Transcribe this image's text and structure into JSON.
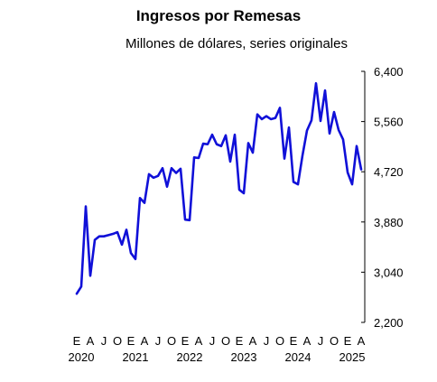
{
  "chart_data": {
    "type": "line",
    "title": "Ingresos por Remesas",
    "subtitle": "Millones de dólares, series originales",
    "y_ticks": [
      "6,400",
      "5,560",
      "4,720",
      "3,880",
      "3,040",
      "2,200"
    ],
    "y_tick_values": [
      6400,
      5560,
      4720,
      3880,
      3040,
      2200
    ],
    "ylim": [
      2200,
      6400
    ],
    "month_letters": [
      "E",
      "A",
      "J",
      "O",
      "E",
      "A",
      "J",
      "O",
      "E",
      "A",
      "J",
      "O",
      "E",
      "A",
      "J",
      "O",
      "E",
      "A",
      "J",
      "O",
      "E",
      "A"
    ],
    "month_letter_index": [
      0,
      3,
      6,
      9,
      12,
      15,
      18,
      21,
      24,
      27,
      30,
      33,
      36,
      39,
      42,
      45,
      48,
      51,
      54,
      57,
      60,
      63
    ],
    "years": [
      "2020",
      "2021",
      "2022",
      "2023",
      "2024",
      "2025"
    ],
    "year_index": [
      0,
      12,
      24,
      36,
      48,
      60
    ],
    "series": [
      {
        "color": "#1010d8",
        "start": "2020-01",
        "values": [
          2680,
          2800,
          4140,
          2980,
          3580,
          3640,
          3640,
          3660,
          3680,
          3710,
          3500,
          3750,
          3360,
          3260,
          4280,
          4200,
          4680,
          4620,
          4650,
          4780,
          4470,
          4780,
          4700,
          4770,
          3920,
          3910,
          4960,
          4950,
          5190,
          5180,
          5340,
          5180,
          5150,
          5330,
          4890,
          5340,
          4420,
          4360,
          5200,
          5040,
          5680,
          5600,
          5650,
          5600,
          5620,
          5790,
          4940,
          5460,
          4550,
          4510,
          4990,
          5410,
          5580,
          6200,
          5570,
          6080,
          5360,
          5720,
          5420,
          5260,
          4710,
          4510,
          5150,
          4760
        ]
      }
    ]
  }
}
